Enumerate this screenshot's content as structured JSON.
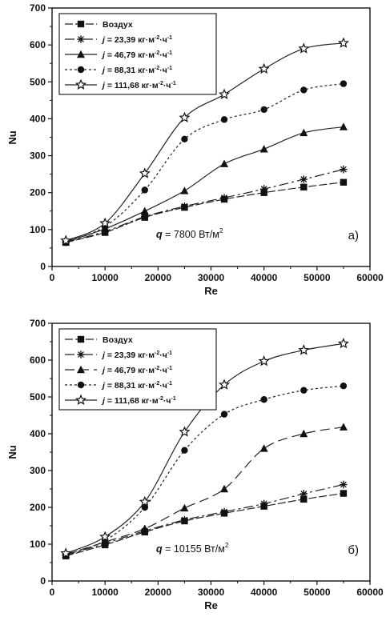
{
  "chart_data": [
    {
      "type": "line",
      "panel_label": "а)",
      "annotation": {
        "text": "q = 7800 Вт/м",
        "var": "q",
        "rest": " = 7800 Вт/м",
        "sup": "2"
      },
      "xlabel": "Re",
      "ylabel": "Nu",
      "xlim": [
        0,
        60000
      ],
      "ylim": [
        0,
        700
      ],
      "xticks": [
        "0",
        "10000",
        "20000",
        "30000",
        "40000",
        "50000",
        "60000"
      ],
      "yticks": [
        "0",
        "100",
        "200",
        "300",
        "400",
        "500",
        "600",
        "700"
      ],
      "x": [
        2600,
        10000,
        17500,
        25000,
        32500,
        40000,
        47500,
        55000
      ],
      "legend_position": "top-left",
      "series": [
        {
          "name": "Воздух",
          "legend": {
            "plain": "Воздух"
          },
          "marker": "square",
          "dash": "10,3",
          "values": [
            65,
            92,
            133,
            160,
            182,
            200,
            215,
            228
          ]
        },
        {
          "name": "j = 23,39 кг·м-2·ч-1",
          "legend": {
            "j": "j",
            "num": " =  23,39 кг·м",
            "e1": "-2",
            "mid": "·ч",
            "e2": "-1"
          },
          "marker": "asterisk",
          "dash": "12,4,3,4",
          "values": [
            66,
            95,
            135,
            163,
            186,
            210,
            236,
            263
          ]
        },
        {
          "name": "j = 46,79 кг·м-2·ч-1",
          "legend": {
            "j": "j",
            "num": " =  46,79 кг·м",
            "e1": "-2",
            "mid": "·ч",
            "e2": "-1"
          },
          "marker": "triangle",
          "dash": "",
          "values": [
            67,
            102,
            150,
            205,
            278,
            318,
            362,
            378
          ]
        },
        {
          "name": "j = 88,31 кг·м-2·ч-1",
          "legend": {
            "j": "j",
            "num": " =  88,31 кг·м",
            "e1": "-2",
            "mid": "·ч",
            "e2": "-1"
          },
          "marker": "circle",
          "dash": "3,3",
          "values": [
            68,
            108,
            207,
            345,
            398,
            425,
            478,
            495
          ]
        },
        {
          "name": "j = 111,68 кг·м-2·ч-1",
          "legend": {
            "j": "j",
            "num": " = 111,68 кг·м",
            "e1": "-2",
            "mid": "·ч",
            "e2": "-1"
          },
          "marker": "star",
          "dash": "",
          "values": [
            70,
            117,
            252,
            403,
            466,
            535,
            590,
            605
          ]
        }
      ]
    },
    {
      "type": "line",
      "panel_label": "б)",
      "annotation": {
        "text": "q = 10155 Вт/м",
        "var": "q",
        "rest": " = 10155 Вт/м",
        "sup": "2"
      },
      "xlabel": "Re",
      "ylabel": "Nu",
      "xlim": [
        0,
        60000
      ],
      "ylim": [
        0,
        700
      ],
      "xticks": [
        "0",
        "10000",
        "20000",
        "30000",
        "40000",
        "50000",
        "60000"
      ],
      "yticks": [
        "0",
        "100",
        "200",
        "300",
        "400",
        "500",
        "600",
        "700"
      ],
      "x": [
        2600,
        10000,
        17500,
        25000,
        32500,
        40000,
        47500,
        55000
      ],
      "legend_position": "top-left",
      "series": [
        {
          "name": "Воздух",
          "legend": {
            "plain": "Воздух"
          },
          "marker": "square",
          "dash": "10,3",
          "values": [
            68,
            98,
            133,
            163,
            184,
            203,
            222,
            238
          ]
        },
        {
          "name": "j = 23,39 кг·м-2·ч-1",
          "legend": {
            "j": "j",
            "num": " =  23,39 кг·м",
            "e1": "-2",
            "mid": "·ч",
            "e2": "-1"
          },
          "marker": "asterisk",
          "dash": "12,4,3,4",
          "values": [
            70,
            102,
            136,
            166,
            188,
            210,
            237,
            262
          ]
        },
        {
          "name": "j = 46,79 кг·м-2·ч-1",
          "legend": {
            "j": "j",
            "num": " =  46,79 кг·м",
            "e1": "-2",
            "mid": "·ч",
            "e2": "-1"
          },
          "marker": "triangle",
          "dash": "12,6",
          "values": [
            72,
            106,
            142,
            198,
            250,
            360,
            400,
            418
          ]
        },
        {
          "name": "j = 88,31 кг·м-2·ч-1",
          "legend": {
            "j": "j",
            "num": " =  88,31 кг·м",
            "e1": "-2",
            "mid": "·ч",
            "e2": "-1"
          },
          "marker": "circle",
          "dash": "3,3",
          "values": [
            73,
            110,
            200,
            355,
            453,
            493,
            518,
            530
          ]
        },
        {
          "name": "j = 111,68 кг·м-2·ч-1",
          "legend": {
            "j": "j",
            "num": " = 111,68 кг·м",
            "e1": "-2",
            "mid": "·ч",
            "e2": "-1"
          },
          "marker": "star",
          "dash": "",
          "values": [
            75,
            120,
            215,
            405,
            533,
            597,
            627,
            645
          ]
        }
      ]
    }
  ]
}
